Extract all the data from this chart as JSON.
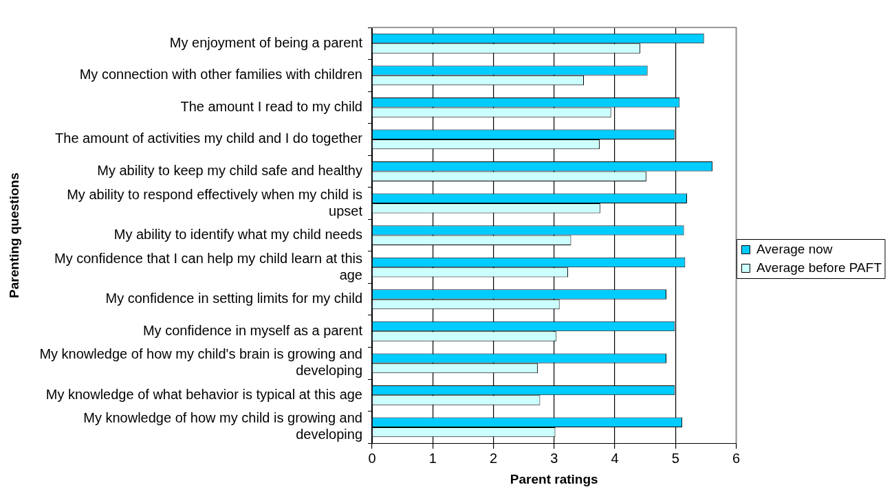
{
  "chart_data": {
    "type": "bar",
    "orientation": "horizontal",
    "xlabel": "Parent ratings",
    "ylabel": "Parenting questions",
    "categories": [
      "My enjoyment of being a parent",
      "My connection with other families with children",
      "The amount I read to my child",
      "The amount of activities my child and I do together",
      "My ability to keep my child safe and healthy",
      "My ability to respond effectively when my child is upset",
      "My ability to identify what my child needs",
      "My confidence that I can help my child learn at this age",
      "My confidence in setting limits for my child",
      "My confidence in myself as a parent",
      "My knowledge of how my child's brain is growing and developing",
      "My knowledge of what behavior is typical at this age",
      "My knowledge of how my child is growing and developing"
    ],
    "series": [
      {
        "name": "Average now",
        "color": "#00ccff",
        "values": [
          5.47,
          4.54,
          5.07,
          4.99,
          5.61,
          5.19,
          5.14,
          5.16,
          4.85,
          4.99,
          4.85,
          4.99,
          5.11
        ]
      },
      {
        "name": "Average before PAFT",
        "color": "#ccffff",
        "values": [
          4.42,
          3.49,
          3.94,
          3.75,
          4.52,
          3.76,
          3.28,
          3.23,
          3.09,
          3.04,
          2.73,
          2.77,
          3.02
        ]
      }
    ],
    "xlim": [
      0,
      6
    ],
    "xticks": [
      0,
      1,
      2,
      3,
      4,
      5,
      6
    ],
    "grid": "x",
    "legend": "right"
  }
}
